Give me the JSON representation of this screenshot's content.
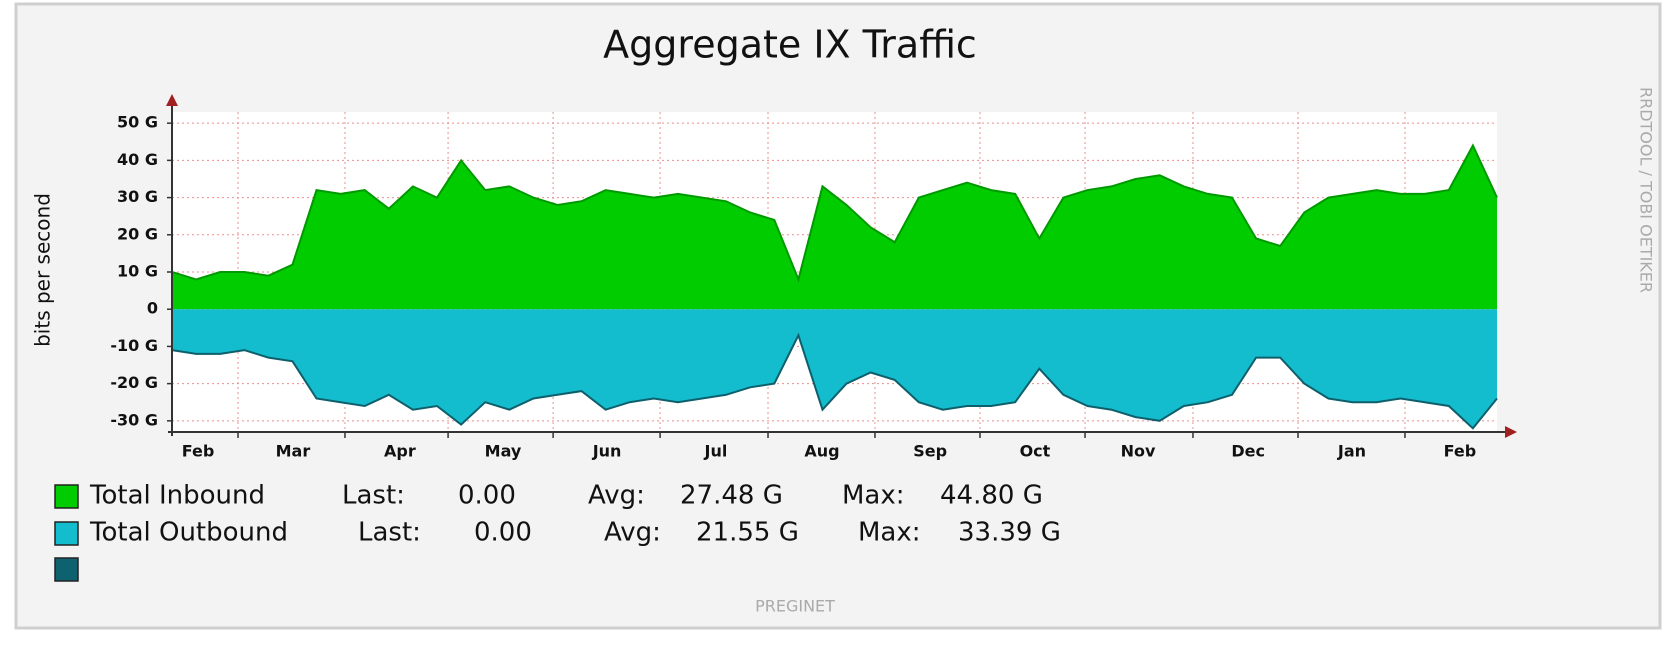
{
  "chart_data": {
    "type": "area",
    "title": "Aggregate  IX Traffic",
    "y_label": "bits per second",
    "side_label": "RRDTOOL / TOBI OETIKER",
    "footer": "PREGINET",
    "xlim": [
      0,
      55
    ],
    "xticks": [
      {
        "value": 1.08,
        "label": "Feb"
      },
      {
        "value": 5.02,
        "label": "Mar"
      },
      {
        "value": 9.46,
        "label": "Apr"
      },
      {
        "value": 13.74,
        "label": "May"
      },
      {
        "value": 18.06,
        "label": "Jun"
      },
      {
        "value": 22.58,
        "label": "Jul"
      },
      {
        "value": 26.98,
        "label": "Aug"
      },
      {
        "value": 31.47,
        "label": "Sep"
      },
      {
        "value": 35.82,
        "label": "Oct"
      },
      {
        "value": 40.1,
        "label": "Nov"
      },
      {
        "value": 44.67,
        "label": "Dec"
      },
      {
        "value": 48.98,
        "label": "Jan"
      },
      {
        "value": 53.46,
        "label": "Feb"
      }
    ],
    "xgrid": [
      2.74,
      7.18,
      11.46,
      15.82,
      20.26,
      24.74,
      29.18,
      33.54,
      37.9,
      42.38,
      46.74,
      51.18
    ],
    "ylim": [
      -33,
      53
    ],
    "yticks": [
      {
        "value": 50,
        "label": "50 G"
      },
      {
        "value": 40,
        "label": "40 G"
      },
      {
        "value": 30,
        "label": "30 G"
      },
      {
        "value": 20,
        "label": "20 G"
      },
      {
        "value": 10,
        "label": "10 G"
      },
      0,
      {
        "value": -10,
        "label": "-10 G"
      },
      {
        "value": -20,
        "label": "-20 G"
      },
      {
        "value": -30,
        "label": "-30 G"
      }
    ],
    "grid": true,
    "series": [
      {
        "name": "Total Inbound",
        "color": "#00cc00",
        "line_color": "#009a00",
        "stats": [
          "Last:",
          "0.00",
          "Avg:",
          "27.48 G",
          "Max:",
          "44.80 G"
        ],
        "values": [
          10,
          8,
          10,
          10,
          9,
          12,
          32,
          31,
          32,
          27,
          33,
          30,
          40,
          32,
          33,
          30,
          28,
          29,
          32,
          31,
          30,
          31,
          30,
          29,
          26,
          24,
          8,
          33,
          28,
          22,
          18,
          30,
          32,
          34,
          32,
          31,
          19,
          30,
          32,
          33,
          35,
          36,
          33,
          31,
          30,
          19,
          17,
          26,
          30,
          31,
          32,
          31,
          31,
          32,
          44,
          30
        ]
      },
      {
        "name": "Total Outbound",
        "color": "#14bdcd",
        "line_color": "#0e5f6c",
        "stats": [
          "Last:",
          "0.00",
          "Avg:",
          "21.55 G",
          "Max:",
          "33.39 G"
        ],
        "values": [
          -11,
          -12,
          -12,
          -11,
          -13,
          -14,
          -24,
          -25,
          -26,
          -23,
          -27,
          -26,
          -31,
          -25,
          -27,
          -24,
          -23,
          -22,
          -27,
          -25,
          -24,
          -25,
          -24,
          -23,
          -21,
          -20,
          -7,
          -27,
          -20,
          -17,
          -19,
          -25,
          -27,
          -26,
          -26,
          -25,
          -16,
          -23,
          -26,
          -27,
          -29,
          -30,
          -26,
          -25,
          -23,
          -13,
          -13,
          -20,
          -24,
          -25,
          -25,
          -24,
          -25,
          -26,
          -32,
          -24
        ]
      }
    ]
  }
}
